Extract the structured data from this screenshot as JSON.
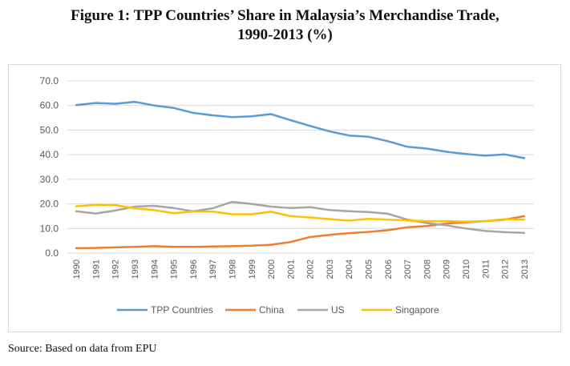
{
  "figure": {
    "title_line1": "Figure 1: TPP Countries’ Share in Malaysia’s Merchandise Trade,",
    "title_line2": "1990-2013 (%)",
    "source": "Source: Based on data from EPU"
  },
  "chart_data": {
    "type": "line",
    "title": "Figure 1: TPP Countries’ Share in Malaysia’s Merchandise Trade, 1990-2013 (%)",
    "xlabel": "",
    "ylabel": "",
    "ylim": [
      0,
      70
    ],
    "y_ticks": [
      "0.0",
      "10.0",
      "20.0",
      "30.0",
      "40.0",
      "50.0",
      "60.0",
      "70.0"
    ],
    "grid": true,
    "legend_position": "bottom",
    "categories": [
      "1990",
      "1991",
      "1992",
      "1993",
      "1994",
      "1995",
      "1996",
      "1997",
      "1998",
      "1999",
      "2000",
      "2001",
      "2002",
      "2003",
      "2004",
      "2005",
      "2006",
      "2007",
      "2008",
      "2009",
      "2010",
      "2011",
      "2012",
      "2013"
    ],
    "series": [
      {
        "name": "TPP Countries",
        "color": "#5b9bd5",
        "values": [
          60.2,
          61.0,
          60.7,
          61.5,
          60.0,
          59.0,
          57.0,
          56.0,
          55.3,
          55.6,
          56.5,
          54.0,
          51.7,
          49.5,
          47.8,
          47.3,
          45.5,
          43.2,
          42.5,
          41.2,
          40.3,
          39.6,
          40.1,
          38.6
        ]
      },
      {
        "name": "China",
        "color": "#ed7d31",
        "values": [
          2.0,
          2.1,
          2.3,
          2.5,
          2.8,
          2.5,
          2.5,
          2.7,
          2.8,
          3.0,
          3.4,
          4.5,
          6.5,
          7.4,
          8.1,
          8.6,
          9.3,
          10.5,
          11.0,
          12.0,
          12.5,
          13.0,
          13.6,
          15.0
        ]
      },
      {
        "name": "US",
        "color": "#a5a5a5",
        "values": [
          17.0,
          16.1,
          17.3,
          18.9,
          19.2,
          18.3,
          17.0,
          18.2,
          20.8,
          20.0,
          18.9,
          18.3,
          18.7,
          17.5,
          17.0,
          16.7,
          16.0,
          13.6,
          12.2,
          11.3,
          10.0,
          9.0,
          8.5,
          8.2
        ]
      },
      {
        "name": "Singapore",
        "color": "#ffc000",
        "values": [
          19.0,
          19.6,
          19.5,
          18.2,
          17.5,
          16.2,
          16.9,
          16.9,
          15.8,
          15.8,
          16.8,
          15.0,
          14.5,
          13.8,
          13.2,
          13.9,
          13.6,
          13.3,
          13.0,
          13.0,
          12.8,
          13.0,
          13.8,
          13.6
        ]
      }
    ]
  }
}
